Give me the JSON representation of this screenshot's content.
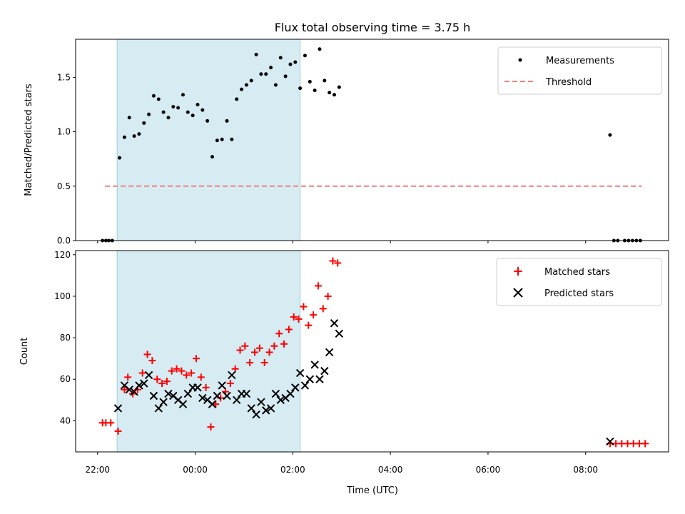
{
  "chart_data": [
    {
      "type": "scatter",
      "title": "Flux total observing time = 3.75 h",
      "ylabel": "Matched/Predicted stars",
      "xlabel": "",
      "ylim": [
        0,
        1.85
      ],
      "yticks": [
        "0.0",
        "0.5",
        "1.0",
        "1.5"
      ],
      "ytick_values": [
        0,
        0.5,
        1.0,
        1.5
      ],
      "xlim_hours": [
        21.55,
        33.7
      ],
      "shaded_span_hours": [
        22.4,
        26.15
      ],
      "shaded_color": "#add8e6",
      "legend_position": "upper right",
      "series": [
        {
          "name": "Measurements",
          "kind": "dots",
          "color": "#000000",
          "points": [
            [
              22.1,
              0
            ],
            [
              22.17,
              0
            ],
            [
              22.23,
              0
            ],
            [
              22.3,
              0
            ],
            [
              22.45,
              0.76
            ],
            [
              22.55,
              0.95
            ],
            [
              22.65,
              1.13
            ],
            [
              22.75,
              0.96
            ],
            [
              22.85,
              0.98
            ],
            [
              22.95,
              1.08
            ],
            [
              23.05,
              1.16
            ],
            [
              23.15,
              1.33
            ],
            [
              23.25,
              1.3
            ],
            [
              23.35,
              1.18
            ],
            [
              23.45,
              1.13
            ],
            [
              23.55,
              1.23
            ],
            [
              23.65,
              1.22
            ],
            [
              23.75,
              1.34
            ],
            [
              23.85,
              1.18
            ],
            [
              23.95,
              1.15
            ],
            [
              24.05,
              1.25
            ],
            [
              24.15,
              1.2
            ],
            [
              24.25,
              1.1
            ],
            [
              24.35,
              0.77
            ],
            [
              24.45,
              0.92
            ],
            [
              24.55,
              0.93
            ],
            [
              24.65,
              1.1
            ],
            [
              24.75,
              0.93
            ],
            [
              24.85,
              1.3
            ],
            [
              24.95,
              1.39
            ],
            [
              25.05,
              1.43
            ],
            [
              25.15,
              1.47
            ],
            [
              25.25,
              1.71
            ],
            [
              25.35,
              1.53
            ],
            [
              25.45,
              1.53
            ],
            [
              25.55,
              1.59
            ],
            [
              25.65,
              1.43
            ],
            [
              25.75,
              1.68
            ],
            [
              25.85,
              1.51
            ],
            [
              25.95,
              1.62
            ],
            [
              26.05,
              1.64
            ],
            [
              26.15,
              1.4
            ],
            [
              26.25,
              1.7
            ],
            [
              26.35,
              1.46
            ],
            [
              26.45,
              1.38
            ],
            [
              26.55,
              1.76
            ],
            [
              26.65,
              1.47
            ],
            [
              26.75,
              1.36
            ],
            [
              26.85,
              1.34
            ],
            [
              26.95,
              1.41
            ]
          ],
          "late_points": [
            [
              32.5,
              0.97
            ],
            [
              32.58,
              0
            ],
            [
              32.66,
              0
            ],
            [
              32.8,
              0
            ],
            [
              32.88,
              0
            ],
            [
              32.96,
              0
            ],
            [
              33.04,
              0
            ],
            [
              33.12,
              0
            ]
          ]
        },
        {
          "name": "Threshold",
          "kind": "dashed-line",
          "color": "#f08080",
          "value": 0.5,
          "x_range_hours": [
            22.15,
            33.15
          ]
        }
      ]
    },
    {
      "type": "scatter",
      "title": "",
      "ylabel": "Count",
      "xlabel": "Time (UTC)",
      "ylim": [
        25,
        122
      ],
      "yticks": [
        "40",
        "60",
        "80",
        "100",
        "120"
      ],
      "ytick_values": [
        40,
        60,
        80,
        100,
        120
      ],
      "xticks": [
        "22:00",
        "00:00",
        "02:00",
        "04:00",
        "06:00",
        "08:00"
      ],
      "xtick_hours": [
        22,
        24,
        26,
        28,
        30,
        32
      ],
      "xlim_hours": [
        21.55,
        33.7
      ],
      "shaded_span_hours": [
        22.4,
        26.15
      ],
      "shaded_color": "#add8e6",
      "legend_position": "upper right",
      "series": [
        {
          "name": "Matched stars",
          "kind": "plus",
          "color": "#ff0000",
          "points": [
            [
              22.1,
              39
            ],
            [
              22.17,
              39
            ],
            [
              22.27,
              39
            ],
            [
              22.42,
              35
            ],
            [
              22.55,
              55
            ],
            [
              22.62,
              61
            ],
            [
              22.72,
              53
            ],
            [
              22.82,
              55
            ],
            [
              22.92,
              63
            ],
            [
              23.02,
              72
            ],
            [
              23.12,
              69
            ],
            [
              23.22,
              60
            ],
            [
              23.32,
              58
            ],
            [
              23.42,
              59
            ],
            [
              23.52,
              64
            ],
            [
              23.62,
              65
            ],
            [
              23.72,
              64
            ],
            [
              23.82,
              62
            ],
            [
              23.92,
              63
            ],
            [
              24.02,
              70
            ],
            [
              24.12,
              61
            ],
            [
              24.22,
              56
            ],
            [
              24.32,
              37
            ],
            [
              24.42,
              48
            ],
            [
              24.52,
              51
            ],
            [
              24.62,
              54
            ],
            [
              24.72,
              58
            ],
            [
              24.82,
              65
            ],
            [
              24.92,
              74
            ],
            [
              25.02,
              76
            ],
            [
              25.12,
              68
            ],
            [
              25.22,
              73
            ],
            [
              25.32,
              75
            ],
            [
              25.42,
              68
            ],
            [
              25.52,
              73
            ],
            [
              25.62,
              76
            ],
            [
              25.72,
              82
            ],
            [
              25.82,
              77
            ],
            [
              25.92,
              84
            ],
            [
              26.02,
              90
            ],
            [
              26.12,
              89
            ],
            [
              26.22,
              95
            ],
            [
              26.32,
              86
            ],
            [
              26.42,
              91
            ],
            [
              26.52,
              105
            ],
            [
              26.62,
              94
            ],
            [
              26.72,
              100
            ],
            [
              26.82,
              117
            ],
            [
              26.92,
              116
            ],
            [
              32.5,
              29
            ],
            [
              32.62,
              29
            ],
            [
              32.74,
              29
            ],
            [
              32.86,
              29
            ],
            [
              32.98,
              29
            ],
            [
              33.1,
              29
            ],
            [
              33.22,
              29
            ]
          ]
        },
        {
          "name": "Predicted stars",
          "kind": "cross",
          "color": "#000000",
          "points": [
            [
              22.42,
              46
            ],
            [
              22.55,
              57
            ],
            [
              22.65,
              55
            ],
            [
              22.75,
              54
            ],
            [
              22.85,
              57
            ],
            [
              22.95,
              58
            ],
            [
              23.05,
              62
            ],
            [
              23.15,
              52
            ],
            [
              23.25,
              46
            ],
            [
              23.35,
              49
            ],
            [
              23.45,
              53
            ],
            [
              23.55,
              52
            ],
            [
              23.65,
              50
            ],
            [
              23.75,
              48
            ],
            [
              23.85,
              53
            ],
            [
              23.95,
              56
            ],
            [
              24.05,
              56
            ],
            [
              24.15,
              51
            ],
            [
              24.25,
              50
            ],
            [
              24.35,
              48
            ],
            [
              24.45,
              52
            ],
            [
              24.55,
              57
            ],
            [
              24.65,
              52
            ],
            [
              24.75,
              62
            ],
            [
              24.85,
              50
            ],
            [
              24.95,
              53
            ],
            [
              25.05,
              53
            ],
            [
              25.15,
              46
            ],
            [
              25.25,
              43
            ],
            [
              25.35,
              49
            ],
            [
              25.45,
              45
            ],
            [
              25.55,
              46
            ],
            [
              25.65,
              53
            ],
            [
              25.75,
              50
            ],
            [
              25.85,
              51
            ],
            [
              25.95,
              53
            ],
            [
              26.05,
              56
            ],
            [
              26.15,
              63
            ],
            [
              26.25,
              57
            ],
            [
              26.35,
              60
            ],
            [
              26.45,
              67
            ],
            [
              26.55,
              60
            ],
            [
              26.65,
              64
            ],
            [
              26.75,
              73
            ],
            [
              26.85,
              87
            ],
            [
              26.95,
              82
            ],
            [
              32.5,
              30
            ]
          ]
        }
      ]
    }
  ]
}
